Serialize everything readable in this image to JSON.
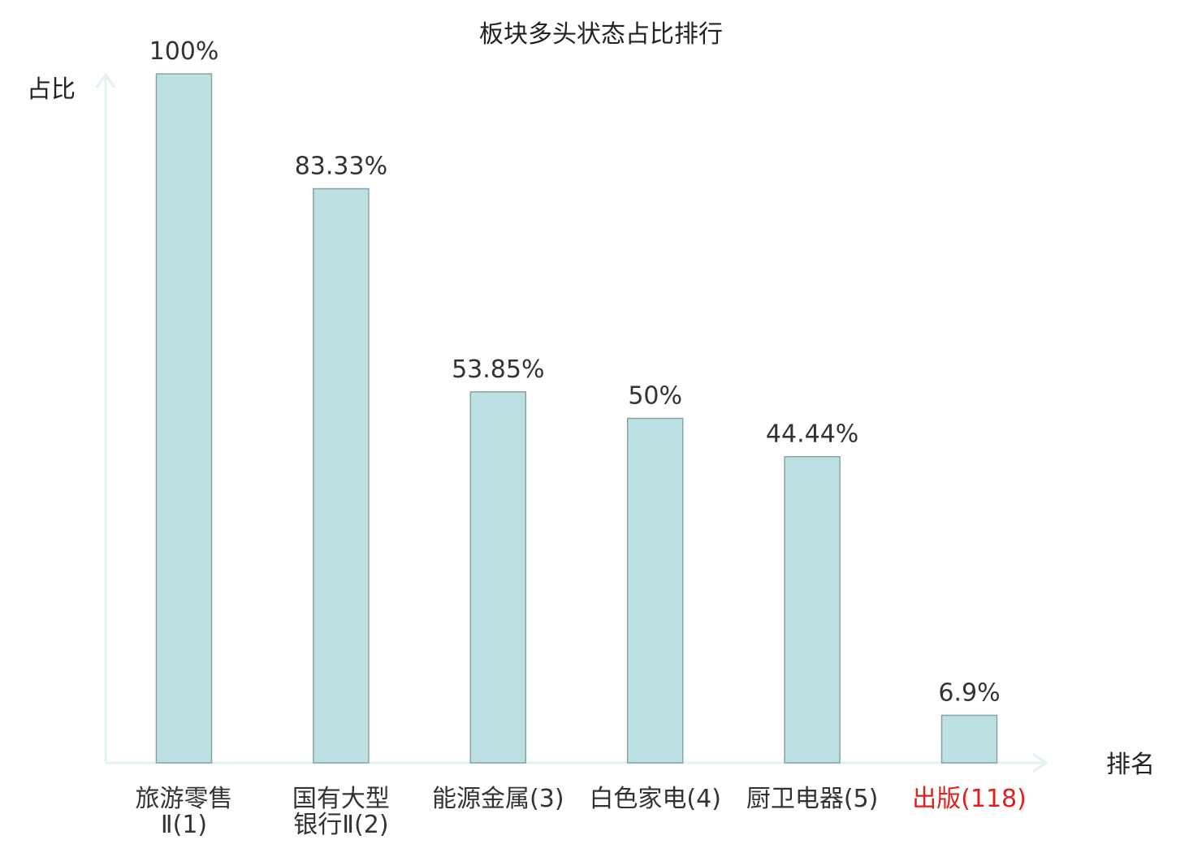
{
  "chart_data": {
    "type": "bar",
    "title": "板块多头状态占比排行",
    "xlabel": "排名",
    "ylabel": "占比",
    "ylim": [
      0,
      100
    ],
    "grid": false,
    "categories": [
      [
        "旅游零售",
        "Ⅱ(1)"
      ],
      [
        "国有大型",
        "银行Ⅱ(2)"
      ],
      [
        "能源金属(3)"
      ],
      [
        "白色家电(4)"
      ],
      [
        "厨卫电器(5)"
      ],
      [
        "出版(118)"
      ]
    ],
    "values": [
      100,
      83.33,
      53.85,
      50,
      44.44,
      6.9
    ],
    "value_labels": [
      "100%",
      "83.33%",
      "53.85%",
      "50%",
      "44.44%",
      "6.9%"
    ],
    "highlight_index": 5
  },
  "colors": {
    "bar_fill": "#bde0e3",
    "bar_stroke": "#86a4a8",
    "axis": "#e0f2f1",
    "text": "#333333",
    "highlight_text": "#e0201f"
  }
}
